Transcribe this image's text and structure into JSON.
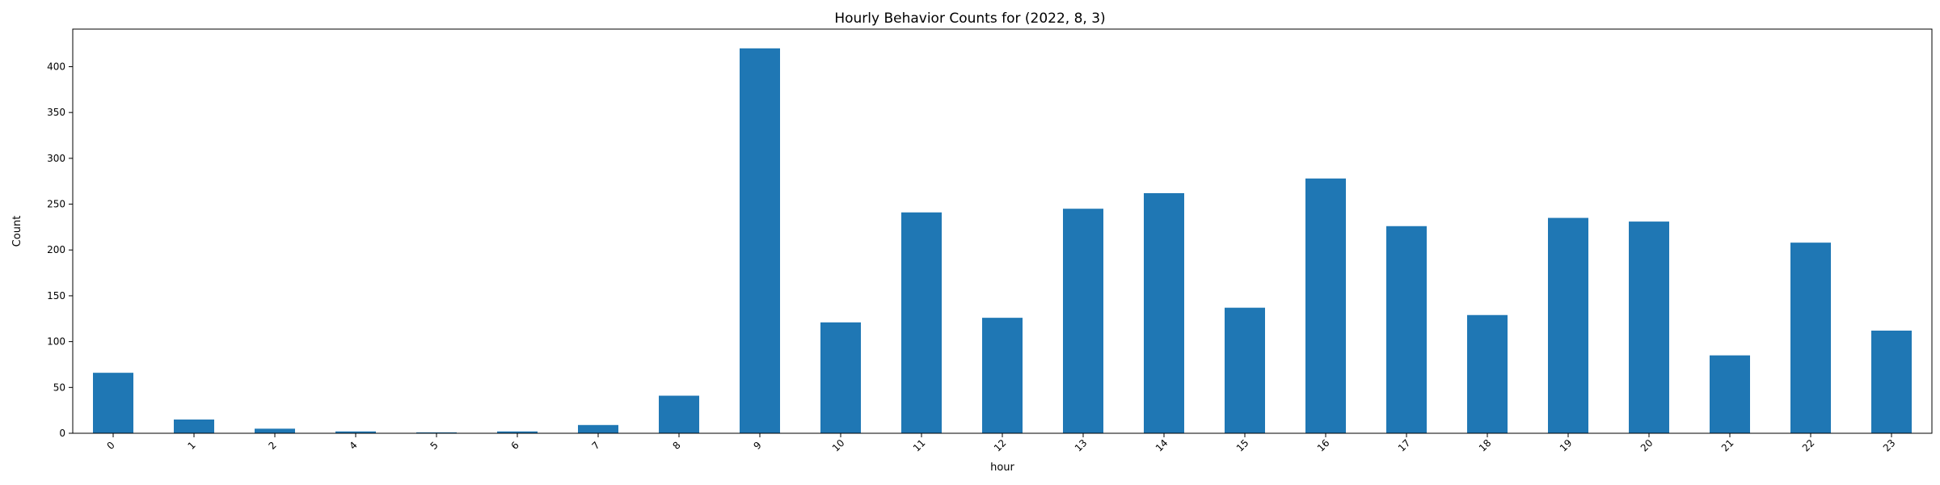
{
  "chart_data": {
    "type": "bar",
    "title": "Hourly Behavior Counts for (2022, 8, 3)",
    "xlabel": "hour",
    "ylabel": "Count",
    "categories": [
      "0",
      "1",
      "2",
      "4",
      "5",
      "6",
      "7",
      "8",
      "9",
      "10",
      "11",
      "12",
      "13",
      "14",
      "15",
      "16",
      "17",
      "18",
      "19",
      "20",
      "21",
      "22",
      "23"
    ],
    "values": [
      66,
      15,
      5,
      2,
      1,
      2,
      9,
      41,
      420,
      121,
      241,
      126,
      245,
      262,
      137,
      278,
      226,
      129,
      235,
      231,
      85,
      208,
      112
    ],
    "ylim": [
      0,
      441
    ],
    "yticks": [
      0,
      50,
      100,
      150,
      200,
      250,
      300,
      350,
      400
    ],
    "grid": false,
    "legend": "none",
    "bar_color": "#1f77b4"
  }
}
